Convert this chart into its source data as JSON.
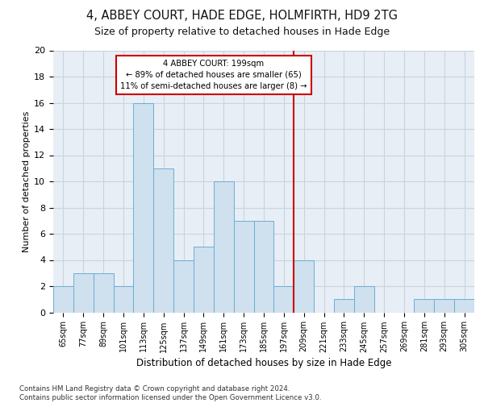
{
  "title": "4, ABBEY COURT, HADE EDGE, HOLMFIRTH, HD9 2TG",
  "subtitle": "Size of property relative to detached houses in Hade Edge",
  "xlabel": "Distribution of detached houses by size in Hade Edge",
  "ylabel": "Number of detached properties",
  "bar_labels": [
    "65sqm",
    "77sqm",
    "89sqm",
    "101sqm",
    "113sqm",
    "125sqm",
    "137sqm",
    "149sqm",
    "161sqm",
    "173sqm",
    "185sqm",
    "197sqm",
    "209sqm",
    "221sqm",
    "233sqm",
    "245sqm",
    "257sqm",
    "269sqm",
    "281sqm",
    "293sqm",
    "305sqm"
  ],
  "bar_values": [
    2,
    3,
    3,
    2,
    16,
    11,
    4,
    5,
    10,
    7,
    7,
    2,
    4,
    0,
    1,
    2,
    0,
    0,
    1,
    1,
    1
  ],
  "bar_color": "#cfe0ee",
  "bar_edge_color": "#6aafd4",
  "marker_bin_index": 11,
  "annotation_line1": "4 ABBEY COURT: 199sqm",
  "annotation_line2": "← 89% of detached houses are smaller (65)",
  "annotation_line3": "11% of semi-detached houses are larger (8) →",
  "annotation_box_color": "#ffffff",
  "annotation_box_edge_color": "#cc0000",
  "vline_color": "#cc0000",
  "grid_color": "#c8d4e0",
  "background_color": "#e8eef5",
  "footer_text": "Contains HM Land Registry data © Crown copyright and database right 2024.\nContains public sector information licensed under the Open Government Licence v3.0.",
  "ylim": [
    0,
    20
  ],
  "yticks": [
    0,
    2,
    4,
    6,
    8,
    10,
    12,
    14,
    16,
    18,
    20
  ]
}
